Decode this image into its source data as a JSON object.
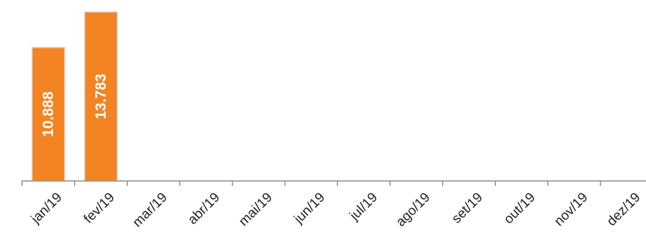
{
  "chart_data": {
    "type": "bar",
    "categories": [
      "jan/19",
      "fev/19",
      "mar/19",
      "abr/19",
      "mai/19",
      "jun/19",
      "jul/19",
      "ago/19",
      "set/19",
      "out/19",
      "nov/19",
      "dez/19"
    ],
    "values": [
      10.888,
      13.783,
      null,
      null,
      null,
      null,
      null,
      null,
      null,
      null,
      null,
      null
    ],
    "data_labels": [
      "10.888",
      "13.783",
      "",
      "",
      "",
      "",
      "",
      "",
      "",
      "",
      "",
      ""
    ],
    "title": "",
    "xlabel": "",
    "ylabel": "",
    "ylim": [
      0,
      14
    ],
    "grid": false,
    "legend": "none",
    "colors": {
      "bar": "#f28423",
      "bar_edge": "#d9d9d9",
      "axis": "#8c8c8c",
      "label": "#ffffff"
    }
  }
}
